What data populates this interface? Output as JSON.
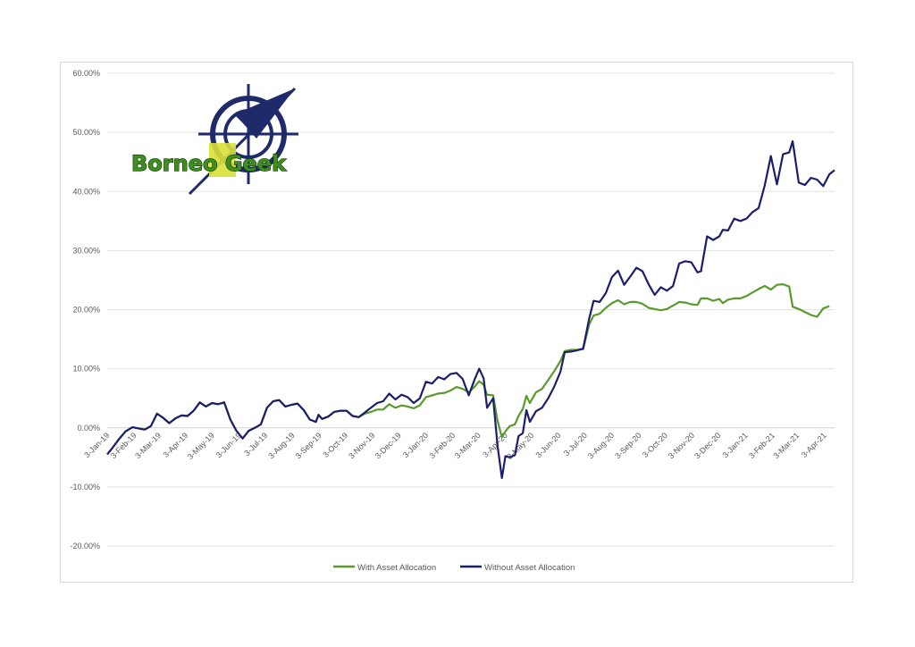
{
  "logo": {
    "text": "Borneo Geek",
    "colors": {
      "navy": "#1f2a6b",
      "green": "#3f8f1e",
      "yellow": "#d8e03a"
    }
  },
  "chart_data": {
    "type": "line",
    "title": "",
    "xlabel": "",
    "ylabel": "",
    "ylim": [
      -20,
      60
    ],
    "yticks": [
      -20,
      -10,
      0,
      10,
      20,
      30,
      40,
      50,
      60
    ],
    "ytick_labels": [
      "-20.00%",
      "-10.00%",
      "0.00%",
      "10.00%",
      "20.00%",
      "30.00%",
      "40.00%",
      "50.00%",
      "60.00%"
    ],
    "xticks": [
      "3-Jan-19",
      "3-Feb-19",
      "3-Mar-19",
      "3-Apr-19",
      "3-May-19",
      "3-Jun-19",
      "3-Jul-19",
      "3-Aug-19",
      "3-Sep-19",
      "3-Oct-19",
      "3-Nov-19",
      "3-Dec-19",
      "3-Jan-20",
      "3-Feb-20",
      "3-Mar-20",
      "3-Apr-20",
      "3-May-20",
      "3-Jun-20",
      "3-Jul-20",
      "3-Aug-20",
      "3-Sep-20",
      "3-Oct-20",
      "3-Nov-20",
      "3-Dec-20",
      "3-Jan-21",
      "3-Feb-21",
      "3-Mar-21",
      "3-Apr-21"
    ],
    "x_range": [
      "2019-01-03",
      "2021-04-15"
    ],
    "grid": true,
    "legend": "bottom-center",
    "series": [
      {
        "name": "With Asset Allocation",
        "color": "#5a9a2c",
        "points": [
          [
            "2019-01-03",
            -4.5
          ],
          [
            "2019-01-10",
            -3.2
          ],
          [
            "2019-01-17",
            -1.8
          ],
          [
            "2019-01-24",
            -0.6
          ],
          [
            "2019-02-01",
            0.1
          ],
          [
            "2019-02-08",
            -0.1
          ],
          [
            "2019-02-15",
            -0.3
          ],
          [
            "2019-02-22",
            0.3
          ],
          [
            "2019-03-01",
            2.4
          ],
          [
            "2019-03-08",
            1.7
          ],
          [
            "2019-03-15",
            0.8
          ],
          [
            "2019-03-22",
            1.6
          ],
          [
            "2019-03-29",
            2.1
          ],
          [
            "2019-04-05",
            2.0
          ],
          [
            "2019-04-12",
            2.9
          ],
          [
            "2019-04-19",
            4.3
          ],
          [
            "2019-04-26",
            3.6
          ],
          [
            "2019-05-03",
            4.2
          ],
          [
            "2019-05-10",
            4.0
          ],
          [
            "2019-05-17",
            4.3
          ],
          [
            "2019-05-24",
            1.4
          ],
          [
            "2019-05-31",
            -0.5
          ],
          [
            "2019-06-07",
            -1.8
          ],
          [
            "2019-06-14",
            -0.5
          ],
          [
            "2019-06-21",
            0.0
          ],
          [
            "2019-06-28",
            0.6
          ],
          [
            "2019-07-05",
            3.4
          ],
          [
            "2019-07-12",
            4.5
          ],
          [
            "2019-07-19",
            4.7
          ],
          [
            "2019-07-26",
            3.6
          ],
          [
            "2019-08-02",
            3.9
          ],
          [
            "2019-08-09",
            4.1
          ],
          [
            "2019-08-16",
            3.0
          ],
          [
            "2019-08-23",
            1.4
          ],
          [
            "2019-08-30",
            1.0
          ],
          [
            "2019-09-02",
            2.2
          ],
          [
            "2019-09-06",
            1.5
          ],
          [
            "2019-09-13",
            1.9
          ],
          [
            "2019-09-20",
            2.7
          ],
          [
            "2019-09-27",
            2.9
          ],
          [
            "2019-10-04",
            2.9
          ],
          [
            "2019-10-11",
            2.0
          ],
          [
            "2019-10-18",
            1.8
          ],
          [
            "2019-10-25",
            2.4
          ],
          [
            "2019-11-01",
            2.7
          ],
          [
            "2019-11-08",
            3.1
          ],
          [
            "2019-11-15",
            3.1
          ],
          [
            "2019-11-22",
            4.0
          ],
          [
            "2019-11-29",
            3.4
          ],
          [
            "2019-12-06",
            3.8
          ],
          [
            "2019-12-13",
            3.6
          ],
          [
            "2019-12-20",
            3.3
          ],
          [
            "2019-12-27",
            3.8
          ],
          [
            "2020-01-03",
            5.2
          ],
          [
            "2020-01-10",
            5.5
          ],
          [
            "2020-01-17",
            5.8
          ],
          [
            "2020-01-24",
            5.9
          ],
          [
            "2020-01-31",
            6.3
          ],
          [
            "2020-02-07",
            6.9
          ],
          [
            "2020-02-14",
            6.6
          ],
          [
            "2020-02-21",
            6.0
          ],
          [
            "2020-02-28",
            7.0
          ],
          [
            "2020-03-04",
            7.9
          ],
          [
            "2020-03-09",
            7.3
          ],
          [
            "2020-03-13",
            5.6
          ],
          [
            "2020-03-20",
            5.5
          ],
          [
            "2020-03-25",
            1.2
          ],
          [
            "2020-03-30",
            -1.6
          ],
          [
            "2020-04-03",
            -0.6
          ],
          [
            "2020-04-08",
            0.3
          ],
          [
            "2020-04-14",
            0.6
          ],
          [
            "2020-04-18",
            2.0
          ],
          [
            "2020-04-23",
            3.2
          ],
          [
            "2020-04-27",
            5.4
          ],
          [
            "2020-05-01",
            4.2
          ],
          [
            "2020-05-08",
            6.0
          ],
          [
            "2020-05-15",
            6.6
          ],
          [
            "2020-05-22",
            8.1
          ],
          [
            "2020-05-29",
            9.6
          ],
          [
            "2020-06-05",
            11.3
          ],
          [
            "2020-06-10",
            13.0
          ],
          [
            "2020-06-17",
            13.2
          ],
          [
            "2020-06-24",
            13.2
          ],
          [
            "2020-07-01",
            13.3
          ],
          [
            "2020-07-08",
            17.5
          ],
          [
            "2020-07-13",
            19.0
          ],
          [
            "2020-07-20",
            19.3
          ],
          [
            "2020-07-27",
            20.3
          ],
          [
            "2020-08-03",
            21.1
          ],
          [
            "2020-08-10",
            21.6
          ],
          [
            "2020-08-17",
            20.9
          ],
          [
            "2020-08-24",
            21.3
          ],
          [
            "2020-08-31",
            21.3
          ],
          [
            "2020-09-07",
            21.0
          ],
          [
            "2020-09-14",
            20.3
          ],
          [
            "2020-09-21",
            20.1
          ],
          [
            "2020-09-28",
            19.9
          ],
          [
            "2020-10-05",
            20.1
          ],
          [
            "2020-10-12",
            20.7
          ],
          [
            "2020-10-19",
            21.3
          ],
          [
            "2020-10-26",
            21.2
          ],
          [
            "2020-11-02",
            20.9
          ],
          [
            "2020-11-09",
            20.8
          ],
          [
            "2020-11-13",
            21.9
          ],
          [
            "2020-11-20",
            21.9
          ],
          [
            "2020-11-27",
            21.5
          ],
          [
            "2020-12-04",
            21.8
          ],
          [
            "2020-12-08",
            21.1
          ],
          [
            "2020-12-14",
            21.7
          ],
          [
            "2020-12-21",
            21.9
          ],
          [
            "2020-12-28",
            21.9
          ],
          [
            "2021-01-04",
            22.3
          ],
          [
            "2021-01-11",
            22.9
          ],
          [
            "2021-01-18",
            23.5
          ],
          [
            "2021-01-25",
            24.0
          ],
          [
            "2021-02-01",
            23.4
          ],
          [
            "2021-02-08",
            24.2
          ],
          [
            "2021-02-15",
            24.3
          ],
          [
            "2021-02-22",
            23.9
          ],
          [
            "2021-02-26",
            20.5
          ],
          [
            "2021-03-05",
            20.1
          ],
          [
            "2021-03-12",
            19.6
          ],
          [
            "2021-03-19",
            19.1
          ],
          [
            "2021-03-26",
            18.8
          ],
          [
            "2021-04-02",
            20.2
          ],
          [
            "2021-04-09",
            20.6
          ]
        ]
      },
      {
        "name": "Without Asset Allocation",
        "color": "#1b1f6b",
        "points": [
          [
            "2019-01-03",
            -4.5
          ],
          [
            "2019-01-10",
            -3.2
          ],
          [
            "2019-01-17",
            -1.8
          ],
          [
            "2019-01-24",
            -0.6
          ],
          [
            "2019-02-01",
            0.1
          ],
          [
            "2019-02-08",
            -0.1
          ],
          [
            "2019-02-15",
            -0.3
          ],
          [
            "2019-02-22",
            0.3
          ],
          [
            "2019-03-01",
            2.4
          ],
          [
            "2019-03-08",
            1.7
          ],
          [
            "2019-03-15",
            0.8
          ],
          [
            "2019-03-22",
            1.6
          ],
          [
            "2019-03-29",
            2.1
          ],
          [
            "2019-04-05",
            2.0
          ],
          [
            "2019-04-12",
            2.9
          ],
          [
            "2019-04-19",
            4.3
          ],
          [
            "2019-04-26",
            3.6
          ],
          [
            "2019-05-03",
            4.2
          ],
          [
            "2019-05-10",
            4.0
          ],
          [
            "2019-05-17",
            4.3
          ],
          [
            "2019-05-24",
            1.4
          ],
          [
            "2019-05-31",
            -0.5
          ],
          [
            "2019-06-07",
            -1.8
          ],
          [
            "2019-06-14",
            -0.5
          ],
          [
            "2019-06-21",
            0.0
          ],
          [
            "2019-06-28",
            0.6
          ],
          [
            "2019-07-05",
            3.4
          ],
          [
            "2019-07-12",
            4.5
          ],
          [
            "2019-07-19",
            4.7
          ],
          [
            "2019-07-26",
            3.6
          ],
          [
            "2019-08-02",
            3.9
          ],
          [
            "2019-08-09",
            4.1
          ],
          [
            "2019-08-16",
            3.0
          ],
          [
            "2019-08-23",
            1.4
          ],
          [
            "2019-08-30",
            1.0
          ],
          [
            "2019-09-02",
            2.2
          ],
          [
            "2019-09-06",
            1.5
          ],
          [
            "2019-09-13",
            1.9
          ],
          [
            "2019-09-20",
            2.7
          ],
          [
            "2019-09-27",
            2.9
          ],
          [
            "2019-10-04",
            2.9
          ],
          [
            "2019-10-11",
            2.0
          ],
          [
            "2019-10-18",
            1.8
          ],
          [
            "2019-10-25",
            2.6
          ],
          [
            "2019-11-01",
            3.4
          ],
          [
            "2019-11-08",
            4.2
          ],
          [
            "2019-11-15",
            4.5
          ],
          [
            "2019-11-22",
            5.8
          ],
          [
            "2019-11-29",
            4.8
          ],
          [
            "2019-12-06",
            5.6
          ],
          [
            "2019-12-13",
            5.2
          ],
          [
            "2019-12-20",
            4.2
          ],
          [
            "2019-12-27",
            5.0
          ],
          [
            "2020-01-03",
            7.8
          ],
          [
            "2020-01-10",
            7.5
          ],
          [
            "2020-01-17",
            8.6
          ],
          [
            "2020-01-24",
            8.2
          ],
          [
            "2020-01-31",
            9.1
          ],
          [
            "2020-02-07",
            9.3
          ],
          [
            "2020-02-14",
            8.3
          ],
          [
            "2020-02-21",
            5.5
          ],
          [
            "2020-02-28",
            8.3
          ],
          [
            "2020-03-04",
            10.0
          ],
          [
            "2020-03-09",
            8.4
          ],
          [
            "2020-03-13",
            3.4
          ],
          [
            "2020-03-20",
            5.0
          ],
          [
            "2020-03-25",
            -3.0
          ],
          [
            "2020-03-30",
            -8.5
          ],
          [
            "2020-04-03",
            -4.8
          ],
          [
            "2020-04-08",
            -5.0
          ],
          [
            "2020-04-14",
            -4.6
          ],
          [
            "2020-04-18",
            -1.4
          ],
          [
            "2020-04-23",
            -0.9
          ],
          [
            "2020-04-27",
            3.0
          ],
          [
            "2020-05-01",
            1.0
          ],
          [
            "2020-05-08",
            2.8
          ],
          [
            "2020-05-15",
            3.4
          ],
          [
            "2020-05-22",
            5.0
          ],
          [
            "2020-05-29",
            7.0
          ],
          [
            "2020-06-05",
            9.5
          ],
          [
            "2020-06-10",
            12.8
          ],
          [
            "2020-06-17",
            12.9
          ],
          [
            "2020-06-24",
            13.1
          ],
          [
            "2020-07-01",
            13.4
          ],
          [
            "2020-07-08",
            18.5
          ],
          [
            "2020-07-13",
            21.5
          ],
          [
            "2020-07-20",
            21.3
          ],
          [
            "2020-07-27",
            22.8
          ],
          [
            "2020-08-03",
            25.5
          ],
          [
            "2020-08-10",
            26.6
          ],
          [
            "2020-08-17",
            24.2
          ],
          [
            "2020-08-24",
            25.6
          ],
          [
            "2020-08-31",
            27.1
          ],
          [
            "2020-09-07",
            26.5
          ],
          [
            "2020-09-14",
            24.3
          ],
          [
            "2020-09-21",
            22.5
          ],
          [
            "2020-09-28",
            23.8
          ],
          [
            "2020-10-05",
            23.2
          ],
          [
            "2020-10-12",
            24.0
          ],
          [
            "2020-10-19",
            27.8
          ],
          [
            "2020-10-26",
            28.2
          ],
          [
            "2020-11-02",
            28.0
          ],
          [
            "2020-11-09",
            26.3
          ],
          [
            "2020-11-13",
            26.5
          ],
          [
            "2020-11-20",
            32.4
          ],
          [
            "2020-11-27",
            31.8
          ],
          [
            "2020-12-04",
            32.4
          ],
          [
            "2020-12-08",
            33.5
          ],
          [
            "2020-12-14",
            33.4
          ],
          [
            "2020-12-21",
            35.4
          ],
          [
            "2020-12-28",
            35.0
          ],
          [
            "2021-01-04",
            35.4
          ],
          [
            "2021-01-11",
            36.5
          ],
          [
            "2021-01-18",
            37.2
          ],
          [
            "2021-01-25",
            41.0
          ],
          [
            "2021-02-01",
            46.0
          ],
          [
            "2021-02-08",
            41.2
          ],
          [
            "2021-02-15",
            46.3
          ],
          [
            "2021-02-22",
            46.6
          ],
          [
            "2021-02-26",
            48.5
          ],
          [
            "2021-03-05",
            41.5
          ],
          [
            "2021-03-12",
            41.1
          ],
          [
            "2021-03-19",
            42.3
          ],
          [
            "2021-03-26",
            42.0
          ],
          [
            "2021-04-02",
            40.9
          ],
          [
            "2021-04-09",
            42.9
          ],
          [
            "2021-04-15",
            43.6
          ]
        ]
      }
    ]
  }
}
